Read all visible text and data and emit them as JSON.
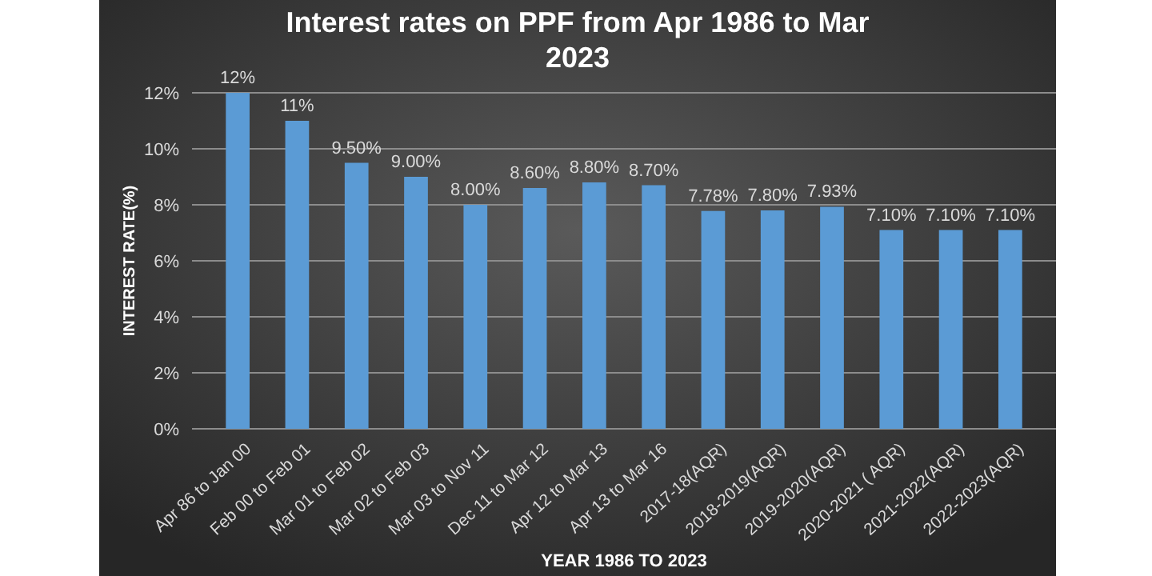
{
  "chart_data": {
    "type": "bar",
    "title": "Interest rates on PPF from Apr 1986 to Mar 2023",
    "xlabel": "YEAR 1986 TO 2023",
    "ylabel": "INTEREST RATE(%)",
    "categories": [
      "Apr 86  to Jan 00",
      "Feb 00 to Feb 01",
      "Mar 01 to Feb 02",
      "Mar 02 to Feb 03",
      "Mar 03 to Nov 11",
      "Dec 11 to Mar 12",
      "Apr 12 to Mar 13",
      "Apr 13 to Mar 16",
      "2017-18(AQR)",
      "2018-2019(AQR)",
      "2019-2020(AQR)",
      "2020-2021 ( AQR)",
      "2021-2022(AQR)",
      "2022-2023(AQR)"
    ],
    "values": [
      12,
      11,
      9.5,
      9,
      8,
      8.6,
      8.8,
      8.7,
      7.78,
      7.8,
      7.93,
      7.1,
      7.1,
      7.1
    ],
    "value_labels": [
      "12%",
      "11%",
      "9.50%",
      "9.00%",
      "8.00%",
      "8.60%",
      "8.80%",
      "8.70%",
      "7.78%",
      "7.80%",
      "7.93%",
      "7.10%",
      "7.10%",
      "7.10%"
    ],
    "color": "#5b9bd5",
    "ylim": [
      0,
      12
    ],
    "yticks": [
      {
        "value": 0,
        "label": "0%"
      },
      {
        "value": 2,
        "label": "2%"
      },
      {
        "value": 4,
        "label": "4%"
      },
      {
        "value": 6,
        "label": "6%"
      },
      {
        "value": 8,
        "label": "8%"
      },
      {
        "value": 10,
        "label": "10%"
      },
      {
        "value": 12,
        "label": "12%"
      }
    ],
    "grid": "y"
  }
}
